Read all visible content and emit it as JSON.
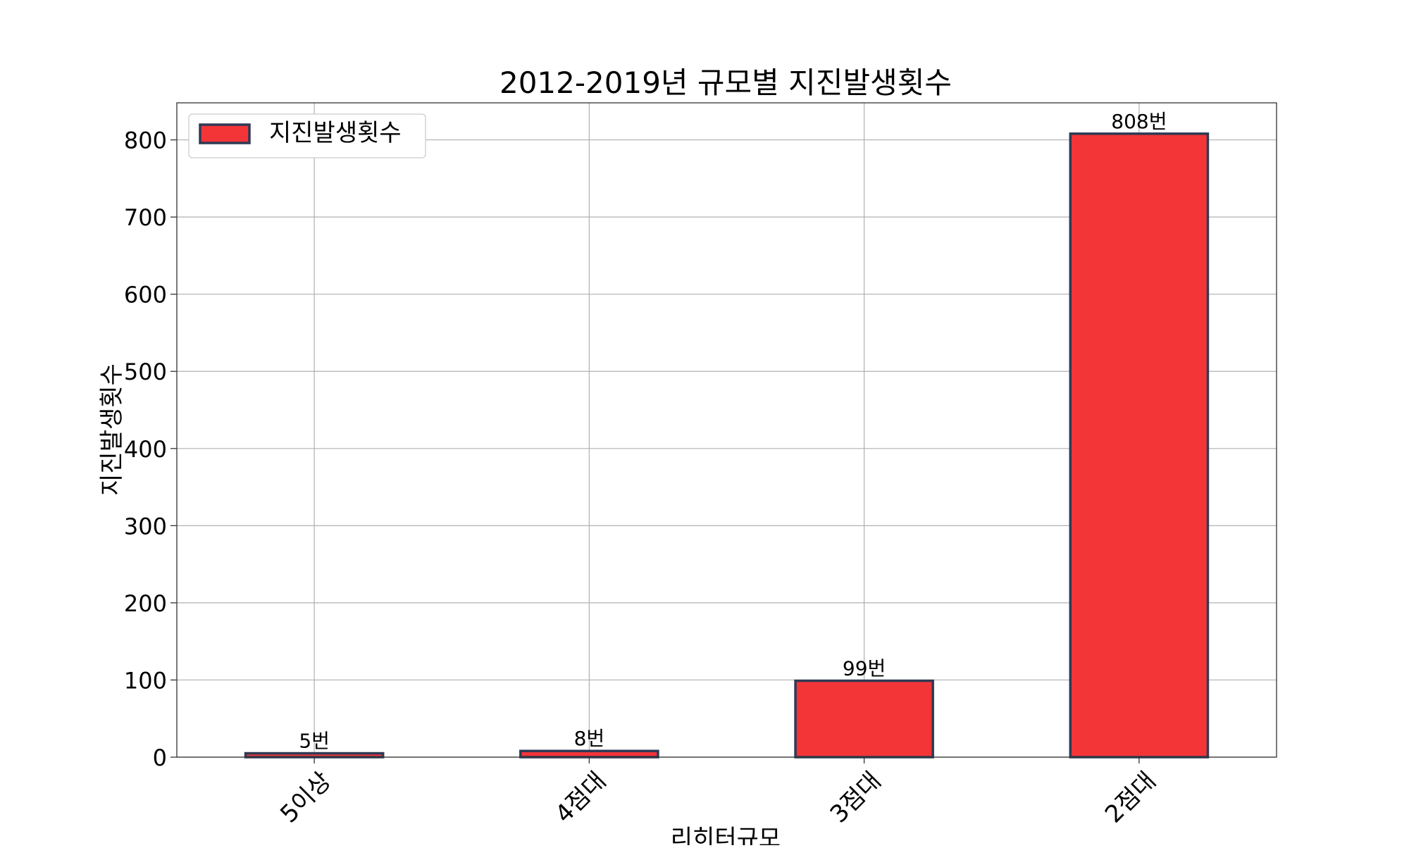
{
  "chart_data": {
    "type": "bar",
    "title": "2012-2019년 규모별 지진발생횟수",
    "xlabel": "리히터규모",
    "ylabel": "지진발생횟수",
    "categories": [
      "5이상",
      "4점대",
      "3점대",
      "2점대"
    ],
    "series": [
      {
        "name": "지진발생횟수",
        "values": [
          5,
          8,
          99,
          808
        ]
      }
    ],
    "data_labels": [
      "5번",
      "8번",
      "99번",
      "808번"
    ],
    "yticks": [
      0,
      100,
      200,
      300,
      400,
      500,
      600,
      700,
      800
    ],
    "ylim": [
      0,
      848
    ],
    "grid": true,
    "legend_position": "top-left",
    "colors": {
      "bar_fill": "#f43538",
      "bar_edge": "#2e3a55",
      "grid": "#b0b0b0"
    }
  }
}
